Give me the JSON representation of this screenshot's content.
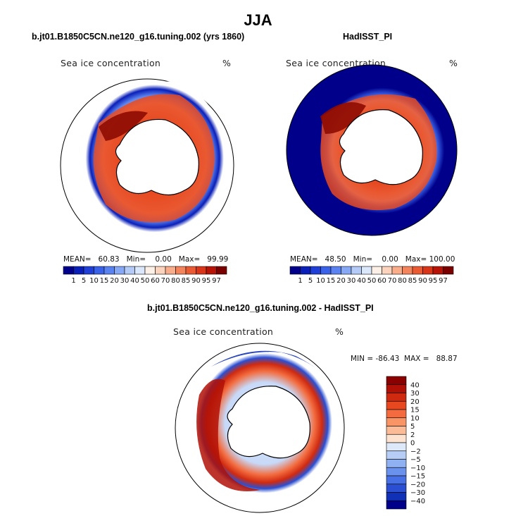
{
  "title": "JJA",
  "panels": [
    {
      "id": "model",
      "subtitle": "b.jt01.B1850C5CN.ne120_g16.tuning.002 (yrs 1860)",
      "variable": "Sea ice concentration",
      "units": "%",
      "stats": "MEAN=   60.83   Min=    0.00   Max=   99.99"
    },
    {
      "id": "obs",
      "subtitle": "HadISST_PI",
      "variable": "Sea ice concentration",
      "units": "%",
      "stats": "MEAN=   48.50   Min=    0.00   Max= 100.00"
    },
    {
      "id": "diff",
      "subtitle": "b.jt01.B1850C5CN.ne120_g16.tuning.002 - HadISST_PI",
      "variable": "Sea ice concentration",
      "units": "%",
      "stats": "MIN = -86.43  MAX =   88.87"
    }
  ],
  "chart_data": [
    {
      "type": "heatmap",
      "projection": "south-polar-stereographic",
      "title": "b.jt01.B1850C5CN.ne120_g16.tuning.002 (yrs 1860)",
      "variable": "Sea ice concentration (%)",
      "mean": 60.83,
      "min": 0.0,
      "max": 99.99,
      "colorbar_levels": [
        1,
        5,
        10,
        15,
        20,
        30,
        40,
        50,
        60,
        70,
        80,
        85,
        90,
        95,
        97
      ],
      "colorbar_labels": [
        "1",
        "5",
        "10",
        "15",
        "20",
        "30",
        "40",
        "50",
        "60",
        "70",
        "80",
        "85",
        "90",
        "95",
        "97"
      ],
      "colorbar_colors": [
        "#00008b",
        "#0a1fb8",
        "#1f3fd6",
        "#3a62e8",
        "#5a82f0",
        "#86a8f5",
        "#b4cbf8",
        "#dbe7fb",
        "#fdf0e6",
        "#fcd3bd",
        "#f9ad8a",
        "#f4845c",
        "#ea5b34",
        "#d93519",
        "#b71307",
        "#7a0000"
      ]
    },
    {
      "type": "heatmap",
      "projection": "south-polar-stereographic",
      "title": "HadISST_PI",
      "variable": "Sea ice concentration (%)",
      "mean": 48.5,
      "min": 0.0,
      "max": 100.0,
      "colorbar_levels": [
        1,
        5,
        10,
        15,
        20,
        30,
        40,
        50,
        60,
        70,
        80,
        85,
        90,
        95,
        97
      ],
      "colorbar_labels": [
        "1",
        "5",
        "10",
        "15",
        "20",
        "30",
        "40",
        "50",
        "60",
        "70",
        "80",
        "85",
        "90",
        "95",
        "97"
      ],
      "colorbar_colors": [
        "#00008b",
        "#0a1fb8",
        "#1f3fd6",
        "#3a62e8",
        "#5a82f0",
        "#86a8f5",
        "#b4cbf8",
        "#dbe7fb",
        "#fdf0e6",
        "#fcd3bd",
        "#f9ad8a",
        "#f4845c",
        "#ea5b34",
        "#d93519",
        "#b71307",
        "#7a0000"
      ]
    },
    {
      "type": "heatmap",
      "projection": "south-polar-stereographic",
      "title": "b.jt01.B1850C5CN.ne120_g16.tuning.002 - HadISST_PI",
      "variable": "Sea ice concentration (%)",
      "min": -86.43,
      "max": 88.87,
      "colorbar_labels": [
        "40",
        "30",
        "20",
        "15",
        "10",
        "5",
        "2",
        "0",
        "−2",
        "−5",
        "−10",
        "−15",
        "−20",
        "−30",
        "−40"
      ],
      "colorbar_colors": [
        "#8b0000",
        "#b01006",
        "#cf2a10",
        "#e8481f",
        "#f36b3e",
        "#f89466",
        "#fbbb96",
        "#fde3cf",
        "#dde8f9",
        "#b6cdf6",
        "#8fb0f1",
        "#6a91ec",
        "#4670e3",
        "#2a4fd2",
        "#1030b8",
        "#00008b"
      ]
    }
  ]
}
